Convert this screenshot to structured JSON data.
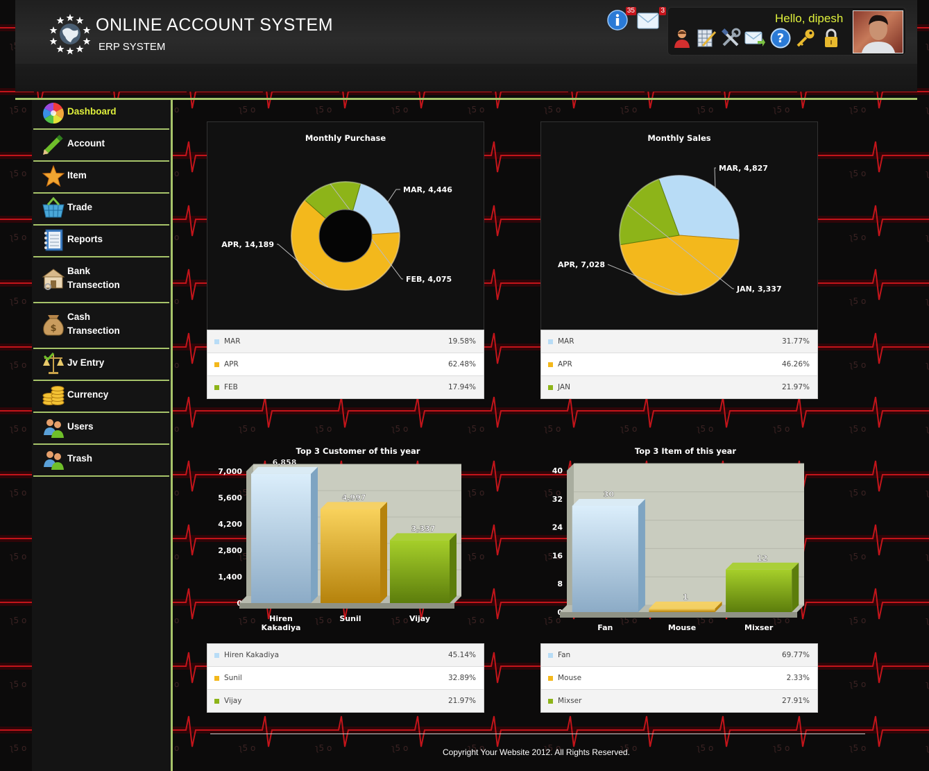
{
  "header": {
    "app_title": "ONLINE ACCOUNT SYSTEM",
    "app_subtitle": "ERP SYSTEM",
    "info_count": "35",
    "mail_count": "3",
    "greeting": "Hello, dipesh"
  },
  "toolbar_icons": [
    "user-profile-icon",
    "edit-document-icon",
    "tools-icon",
    "mail-forward-icon",
    "help-icon",
    "key-icon",
    "lock-icon"
  ],
  "sidebar": {
    "items": [
      {
        "label": "Dashboard",
        "icon": "color-wheel-icon",
        "active": true
      },
      {
        "label": "Account",
        "icon": "pencil-icon"
      },
      {
        "label": "Item",
        "icon": "star-icon"
      },
      {
        "label": "Trade",
        "icon": "basket-icon"
      },
      {
        "label": "Reports",
        "icon": "notebook-icon"
      },
      {
        "label": "Bank\nTransection",
        "icon": "bank-icon"
      },
      {
        "label": "Cash\nTransection",
        "icon": "money-bag-icon"
      },
      {
        "label": "Jv Entry",
        "icon": "scale-icon"
      },
      {
        "label": "Currency",
        "icon": "coins-icon"
      },
      {
        "label": "Users",
        "icon": "users-icon"
      },
      {
        "label": "Trash",
        "icon": "trash-users-icon"
      }
    ]
  },
  "colors": {
    "blue": "#b8dcf6",
    "yellow": "#f3b81c",
    "green": "#8db419",
    "accent": "#a7c46a",
    "greeting": "#dff03c"
  },
  "chart_data": [
    {
      "type": "pie",
      "variant": "donut",
      "title": "Monthly Purchase",
      "slices": [
        {
          "label": "MAR",
          "value": 4446,
          "pct": "19.58%"
        },
        {
          "label": "APR",
          "value": 14189,
          "pct": "62.48%"
        },
        {
          "label": "FEB",
          "value": 4075,
          "pct": "17.94%"
        }
      ],
      "data_labels": [
        "MAR, 4,446",
        "APR, 14,189",
        "FEB, 4,075"
      ]
    },
    {
      "type": "pie",
      "title": "Monthly Sales",
      "slices": [
        {
          "label": "MAR",
          "value": 4827,
          "pct": "31.77%"
        },
        {
          "label": "APR",
          "value": 7028,
          "pct": "46.26%"
        },
        {
          "label": "JAN",
          "value": 3337,
          "pct": "21.97%"
        }
      ],
      "data_labels": [
        "MAR, 4,827",
        "APR, 7,028",
        "JAN, 3,337"
      ]
    },
    {
      "type": "bar",
      "title": "Top 3 Customer of this year",
      "categories": [
        "Hiren Kakadiya",
        "Sunil",
        "Vijay"
      ],
      "category_labels": [
        "Hiren\nKakadiya",
        "Sunil",
        "Vijay"
      ],
      "values": [
        6858,
        4997,
        3337
      ],
      "value_labels": [
        "6,858",
        "4,997",
        "3,337"
      ],
      "yticks": [
        "0",
        "1,400",
        "2,800",
        "4,200",
        "5,600",
        "7,000"
      ],
      "ylim": [
        0,
        7000
      ],
      "legend_pct": [
        "45.14%",
        "32.89%",
        "21.97%"
      ]
    },
    {
      "type": "bar",
      "title": "Top 3 Item of this year",
      "categories": [
        "Fan",
        "Mouse",
        "Mixser"
      ],
      "category_labels": [
        "Fan",
        "Mouse",
        "Mixser"
      ],
      "values": [
        30,
        1,
        12
      ],
      "value_labels": [
        "30",
        "1",
        "12"
      ],
      "yticks": [
        "0",
        "8",
        "16",
        "24",
        "32",
        "40"
      ],
      "ylim": [
        0,
        40
      ],
      "legend_pct": [
        "69.77%",
        "2.33%",
        "27.91%"
      ]
    }
  ],
  "footer": {
    "copyright": "Copyright Your Website 2012. All Rights Reserved."
  }
}
